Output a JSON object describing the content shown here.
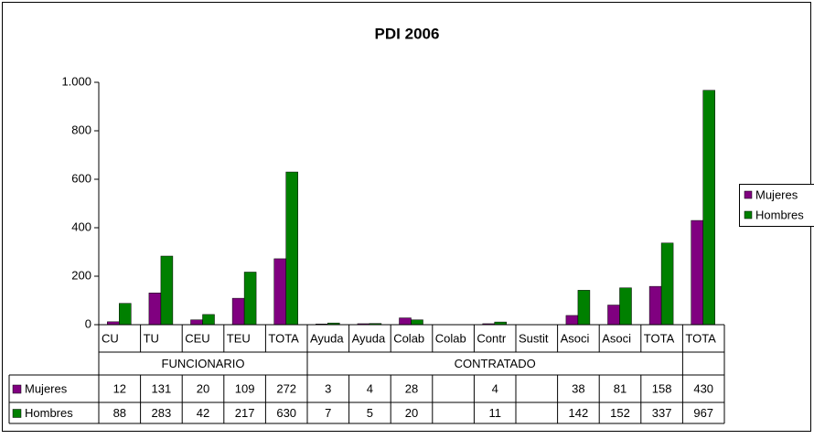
{
  "chart_data": {
    "type": "bar",
    "title": "PDI 2006",
    "categories": [
      "CU",
      "TU",
      "CEU",
      "TEU",
      "TOTA",
      "Ayuda",
      "Ayuda",
      "Colab",
      "Colab",
      "Contr",
      "Sustit",
      "Asoci",
      "Asoci",
      "TOTA",
      "TOTA"
    ],
    "groups": [
      {
        "label": "FUNCIONARIO",
        "start": 0,
        "end": 4
      },
      {
        "label": "CONTRATADO",
        "start": 5,
        "end": 13
      }
    ],
    "series": [
      {
        "name": "Mujeres",
        "color": "#800080",
        "values": [
          12,
          131,
          20,
          109,
          272,
          3,
          4,
          28,
          null,
          4,
          null,
          38,
          81,
          158,
          430
        ]
      },
      {
        "name": "Hombres",
        "color": "#008000",
        "values": [
          88,
          283,
          42,
          217,
          630,
          7,
          5,
          20,
          null,
          11,
          null,
          142,
          152,
          337,
          967
        ]
      }
    ],
    "ylim": [
      0,
      1000
    ],
    "yticks": [
      0,
      200,
      400,
      600,
      800,
      {
        "value": 1000,
        "label": "1.000"
      }
    ],
    "grid": false,
    "legend": "right"
  }
}
